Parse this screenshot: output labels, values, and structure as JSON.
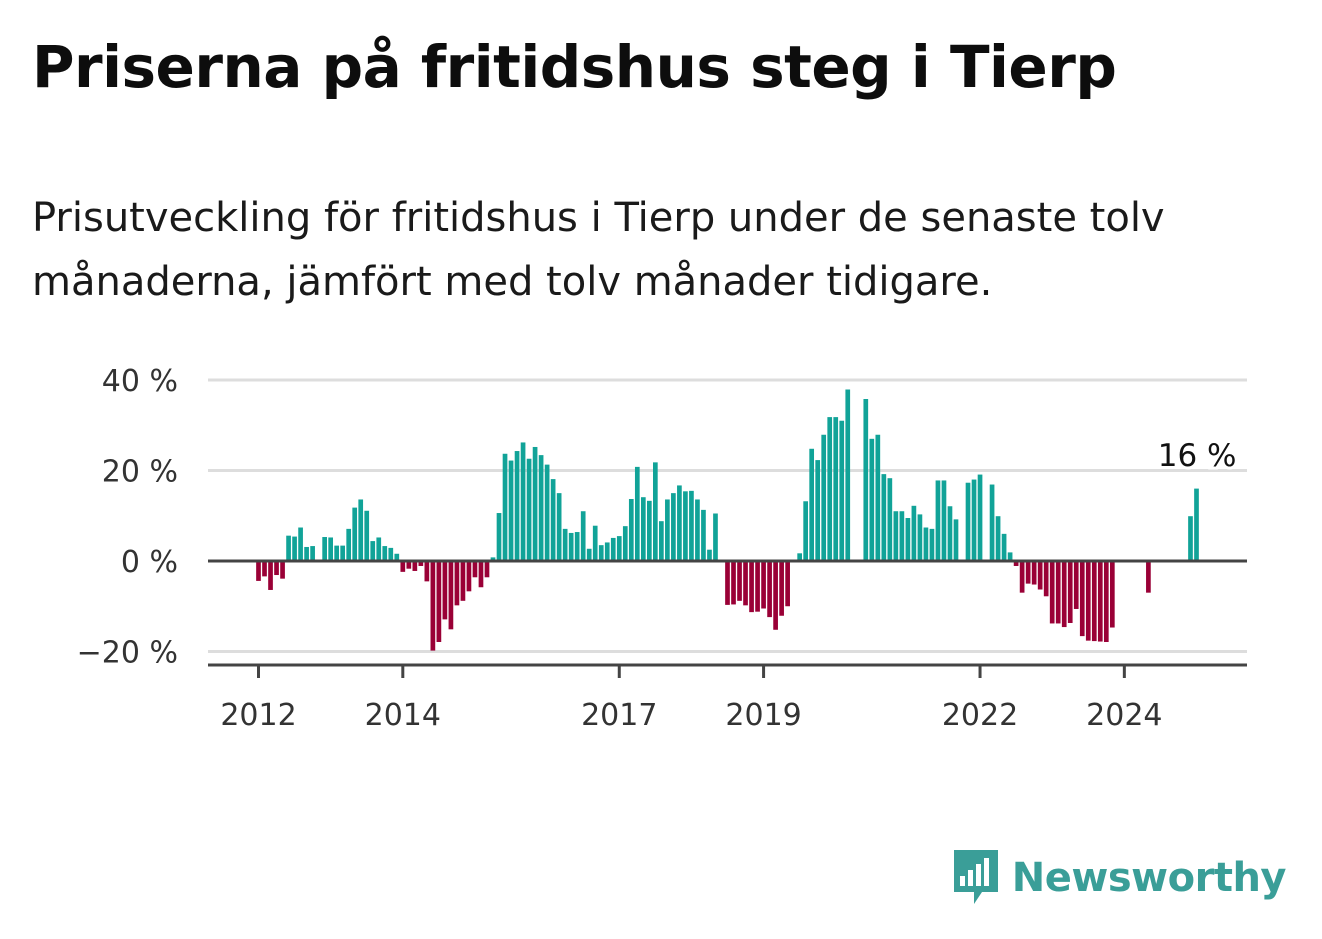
{
  "title": "Priserna på fritidshus steg i Tierp",
  "subtitle": "Prisutveckling för fritidshus i Tierp under de senaste tolv månaderna, jämfört med tolv månader tidigare.",
  "brand": {
    "name": "Newsworthy"
  },
  "colors": {
    "positive": "#11a398",
    "negative": "#9a0036",
    "baseline": "#444444",
    "grid": "#dddddd",
    "brand": "#3a9e98"
  },
  "chart_data": {
    "type": "bar",
    "title": "Priserna på fritidshus steg i Tierp",
    "ylabel": "",
    "xlabel": "",
    "ylim": [
      -22,
      40
    ],
    "y_ticks": [
      40,
      20,
      0,
      -20
    ],
    "y_tick_labels": [
      "40 %",
      "20 %",
      "0 %",
      "−20 %"
    ],
    "x_ticks": [
      {
        "label": "2012",
        "index": 0
      },
      {
        "label": "2014",
        "index": 24
      },
      {
        "label": "2017",
        "index": 60
      },
      {
        "label": "2019",
        "index": 84
      },
      {
        "label": "2022",
        "index": 120
      },
      {
        "label": "2024",
        "index": 144
      }
    ],
    "start_month": "2012-01",
    "end_label": "16 %",
    "values": [
      -4.4,
      -3.4,
      -6.4,
      -3.1,
      -3.9,
      5.6,
      5.4,
      7.4,
      3.1,
      3.3,
      0,
      5.3,
      5.2,
      3.4,
      3.4,
      7.1,
      11.8,
      13.6,
      11.1,
      4.4,
      5.2,
      3.3,
      2.9,
      1.6,
      -2.4,
      -1.7,
      -2.2,
      -1.1,
      -4.5,
      -19.8,
      -17.9,
      -12.9,
      -15.1,
      -9.8,
      -8.8,
      -6.7,
      -3.6,
      -5.8,
      -3.6,
      0.8,
      10.6,
      23.7,
      22.2,
      24.3,
      26.2,
      22.6,
      25.2,
      23.4,
      21.3,
      18.1,
      15.0,
      7.1,
      6.2,
      6.4,
      11.0,
      2.7,
      7.8,
      3.5,
      4.1,
      5.1,
      5.5,
      7.7,
      13.7,
      20.8,
      14.1,
      13.3,
      21.8,
      8.8,
      13.6,
      15.0,
      16.7,
      15.4,
      15.5,
      13.6,
      11.3,
      2.5,
      10.5,
      0,
      -9.7,
      -9.6,
      -8.8,
      -9.8,
      -11.3,
      -11.2,
      -10.5,
      -12.4,
      -15.2,
      -12.1,
      -10.0,
      0,
      1.7,
      13.2,
      24.8,
      22.3,
      27.9,
      31.8,
      31.8,
      31.0,
      37.9,
      0,
      0,
      35.8,
      27.0,
      27.9,
      19.2,
      18.3,
      11.0,
      11.0,
      9.5,
      12.2,
      10.3,
      7.4,
      7.1,
      17.8,
      17.8,
      12.1,
      9.2,
      0,
      17.3,
      18.0,
      19.1,
      0,
      16.9,
      9.9,
      6.0,
      1.9,
      -1.1,
      -7.0,
      -5.0,
      -5.2,
      -6.3,
      -7.8,
      -13.8,
      -13.8,
      -14.6,
      -13.7,
      -10.6,
      -16.6,
      -17.6,
      -17.7,
      -17.8,
      -17.9,
      -14.7,
      0,
      0,
      0,
      0,
      0,
      -7.0,
      0,
      0,
      0,
      0,
      0,
      0,
      9.9,
      16.0
    ]
  }
}
